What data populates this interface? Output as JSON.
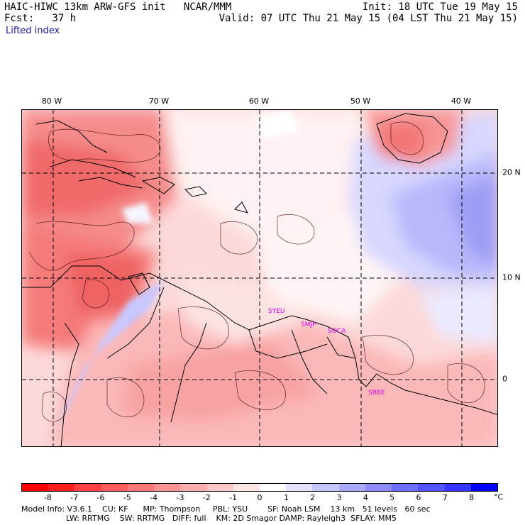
{
  "header": {
    "title_left": "HAIC-HIWC 13km ARW-GFS init   NCAR/MMM",
    "forecast_label": "Fcst:   37 h",
    "init_label": "Init: 18 UTC Tue 19 May 15",
    "valid_label": "Valid: 07 UTC Thu 21 May 15 (04 LST Thu 21 May 15)",
    "field_name": "Lifted index"
  },
  "map": {
    "lon_labels": [
      "80 W",
      "70 W",
      "60 W",
      "50 W",
      "40 W"
    ],
    "lat_labels": [
      "20 N",
      "10 N",
      "0"
    ],
    "stations": [
      "SYEU",
      "SMJP",
      "SOCA",
      "SBBE"
    ]
  },
  "colorbar": {
    "ticks": [
      "-8",
      "-7",
      "-6",
      "-5",
      "-4",
      "-3",
      "-2",
      "-1",
      "0",
      "1",
      "2",
      "3",
      "4",
      "5",
      "6",
      "7",
      "8"
    ],
    "unit": "°C",
    "colors": [
      "#ff0000",
      "#ff2020",
      "#ff4040",
      "#ff5d5d",
      "#ff7878",
      "#ff9393",
      "#ffadad",
      "#ffc8c8",
      "#ffe4e4",
      "#ffffff",
      "#e2e2ff",
      "#c5c5ff",
      "#a8a8ff",
      "#8c8cff",
      "#6f6fff",
      "#5252ff",
      "#3535ff",
      "#0000ff"
    ]
  },
  "footer": {
    "line1": "Model Info: V3.6.1    CU: KF      MP: Thompson     PBL: YSU        SF: Noah LSM    13 km   51 levels   60 sec",
    "line2": "                  LW: RRTMG    SW: RRTMG   DIFF: full    KM: 2D Smagor DAMP: Rayleigh3  SFLAY: MM5"
  }
}
